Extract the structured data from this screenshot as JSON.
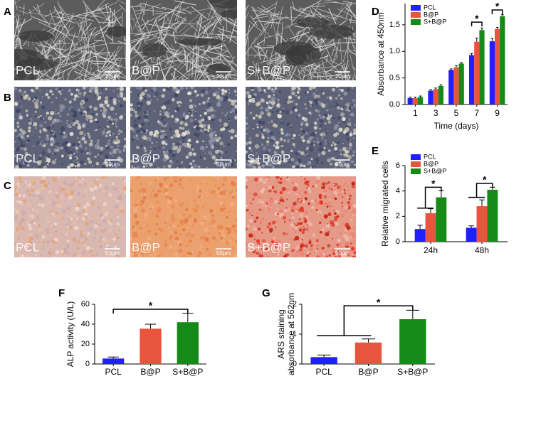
{
  "images": {
    "rows": [
      {
        "panel": "A",
        "cells": [
          {
            "label": "PCL",
            "scale": "20μm"
          },
          {
            "label": "B@P",
            "scale": "20μm"
          },
          {
            "label": "S+B@P",
            "scale": "20μm"
          }
        ]
      },
      {
        "panel": "B",
        "cells": [
          {
            "label": "PCL",
            "scale": "50μm"
          },
          {
            "label": "B@P",
            "scale": "50μm"
          },
          {
            "label": "S+B@P",
            "scale": "50μm"
          }
        ]
      },
      {
        "panel": "C",
        "cells": [
          {
            "label": "PCL",
            "scale": "50μm"
          },
          {
            "label": "B@P",
            "scale": "50μm"
          },
          {
            "label": "S+B@P",
            "scale": "50μm"
          }
        ]
      }
    ]
  },
  "chart_data": [
    {
      "type": "bar",
      "panel": "D",
      "ylabel": "Absorbance at 450nm",
      "xlabel": "Time (days)",
      "categories": [
        "1",
        "3",
        "5",
        "7",
        "9"
      ],
      "series": [
        {
          "name": "PCL",
          "color": "#1f1fff",
          "values": [
            0.12,
            0.26,
            0.65,
            0.93,
            1.19
          ],
          "errors": [
            0.02,
            0.02,
            0.02,
            0.03,
            0.05
          ]
        },
        {
          "name": "B@P",
          "color": "#e8553f",
          "values": [
            0.12,
            0.29,
            0.7,
            1.18,
            1.42
          ],
          "errors": [
            0.02,
            0.02,
            0.03,
            0.07,
            0.03
          ]
        },
        {
          "name": "S+B@P",
          "color": "#168a16",
          "values": [
            0.14,
            0.35,
            0.77,
            1.4,
            1.66
          ],
          "errors": [
            0.02,
            0.02,
            0.02,
            0.04,
            0.03
          ]
        }
      ],
      "ylim": [
        0,
        1.9
      ],
      "yticks": [
        {
          "value": 0,
          "label": "0.0"
        },
        0.5,
        {
          "value": 1,
          "label": "1.0"
        },
        1.5
      ],
      "significance": [
        "*",
        "*"
      ]
    },
    {
      "type": "bar",
      "panel": "E",
      "ylabel": "Relative migrated cells",
      "categories": [
        "24h",
        "48h"
      ],
      "series": [
        {
          "name": "PCL",
          "color": "#1f1fff",
          "values": [
            1.0,
            1.1
          ],
          "errors": [
            0.3,
            0.15
          ]
        },
        {
          "name": "B@P",
          "color": "#e8553f",
          "values": [
            2.25,
            2.8
          ],
          "errors": [
            0.35,
            0.5
          ]
        },
        {
          "name": "S+B@P",
          "color": "#168a16",
          "values": [
            3.5,
            4.1
          ],
          "errors": [
            0.55,
            0.2
          ]
        }
      ],
      "ylim": [
        0,
        6
      ],
      "yticks": [
        0,
        2,
        4,
        6
      ],
      "significance": [
        "*",
        "*"
      ]
    },
    {
      "type": "bar",
      "panel": "F",
      "ylabel": "ALP activity (U/L)",
      "categories": [
        "PCL",
        "B@P",
        "S+B@P"
      ],
      "values": [
        5.5,
        35.5,
        42
      ],
      "errors": [
        1.5,
        4.5,
        9
      ],
      "colors": [
        "#1f1fff",
        "#e8553f",
        "#168a16"
      ],
      "ylim": [
        0,
        60
      ],
      "yticks": [
        0,
        20,
        40,
        60
      ],
      "significance": [
        "*"
      ]
    },
    {
      "type": "bar",
      "panel": "G",
      "ylabel": [
        "ARS staining",
        "absorbance at 562nm"
      ],
      "categories": [
        "PCL",
        "B@P",
        "S+B@P"
      ],
      "values": [
        0.23,
        0.72,
        1.5
      ],
      "errors": [
        0.07,
        0.12,
        0.3
      ],
      "colors": [
        "#1f1fff",
        "#e8553f",
        "#168a16"
      ],
      "ylim": [
        0,
        2
      ],
      "yticks": [
        0,
        1,
        2
      ],
      "significance": [
        "*"
      ]
    }
  ]
}
